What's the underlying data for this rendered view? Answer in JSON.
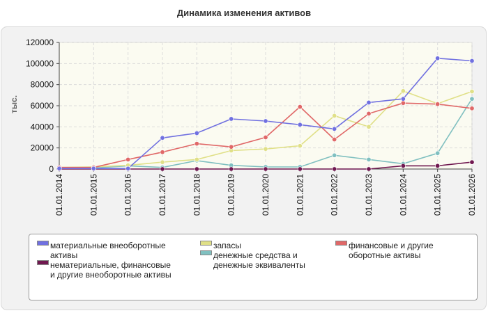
{
  "chart_data": {
    "type": "line",
    "title": "Динамика изменения активов",
    "ylabel": "тыс.",
    "xlabel": "",
    "ylim": [
      0,
      120000
    ],
    "yticks": [
      0,
      20000,
      40000,
      60000,
      80000,
      100000,
      120000
    ],
    "grid": true,
    "legend_position": "bottom",
    "categories": [
      "01.01.2014",
      "01.01.2015",
      "01.01.2016",
      "01.01.2017",
      "01.01.2018",
      "01.01.2019",
      "01.01.2020",
      "01.01.2021",
      "01.01.2022",
      "01.01.2023",
      "01.01.2024",
      "01.01.2025",
      "01.01.2026"
    ],
    "series": [
      {
        "name": "материальные внеоборотные активы",
        "color": "#7070e0",
        "values": [
          500,
          500,
          500,
          29500,
          34000,
          47500,
          45500,
          42000,
          38000,
          63000,
          66500,
          105000,
          102500
        ]
      },
      {
        "name": "запасы",
        "color": "#e0e088",
        "values": [
          1500,
          2000,
          3500,
          6500,
          9000,
          17500,
          19000,
          22000,
          50500,
          40000,
          74000,
          62000,
          73500
        ]
      },
      {
        "name": "финансовые и другие оборотные активы",
        "color": "#e06868",
        "values": [
          1500,
          1500,
          9000,
          16000,
          24000,
          21000,
          30000,
          59000,
          28000,
          52500,
          62500,
          61500,
          57500
        ]
      },
      {
        "name": "нематериальные, финансовые и другие внеоборотные активы",
        "color": "#701850",
        "values": [
          0,
          0,
          0,
          0,
          0,
          0,
          0,
          0,
          0,
          0,
          3000,
          3000,
          6500
        ]
      },
      {
        "name": "денежные средства и денежные эквиваленты",
        "color": "#80c0c0",
        "values": [
          1000,
          1000,
          3000,
          1500,
          8000,
          3500,
          2000,
          2000,
          13000,
          9000,
          5000,
          15000,
          66500
        ]
      }
    ]
  },
  "legend": {
    "items": [
      {
        "label": "материальные внеоборотные активы",
        "color": "#7070e0"
      },
      {
        "label": "нематериальные, финансовые и другие внеоборотные активы",
        "color": "#701850"
      },
      {
        "label": "запасы",
        "color": "#e0e088"
      },
      {
        "label": "денежные средства и денежные эквиваленты",
        "color": "#80c0c0"
      },
      {
        "label": "финансовые и другие оборотные активы",
        "color": "#e06868"
      }
    ]
  }
}
